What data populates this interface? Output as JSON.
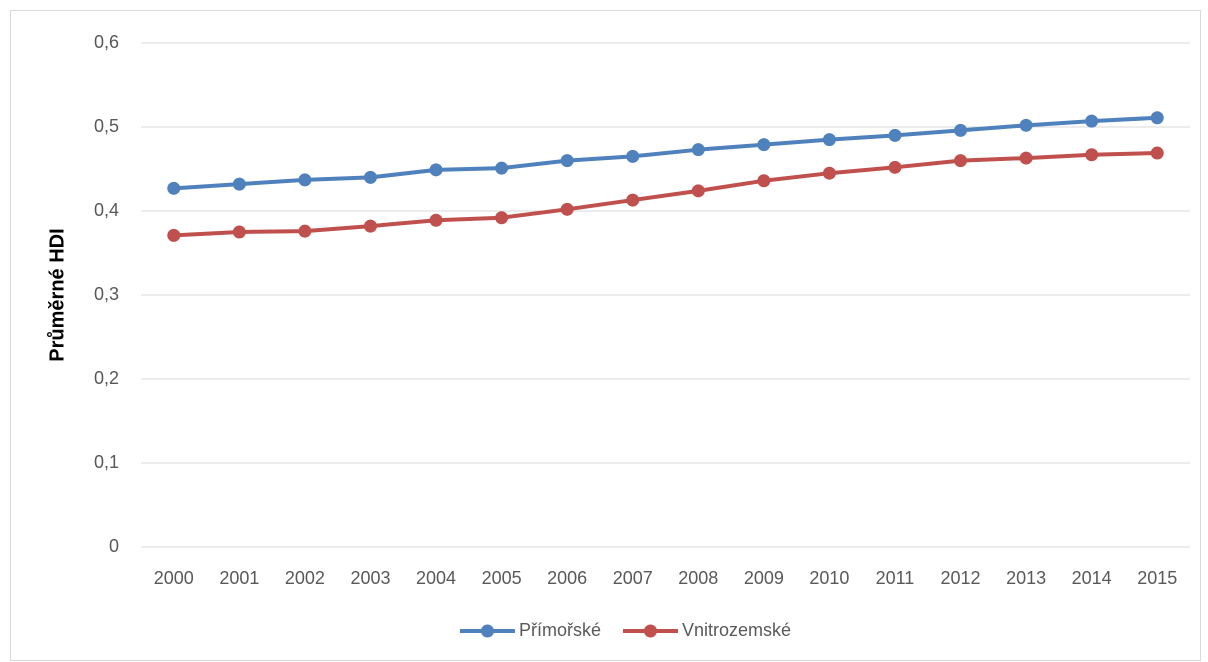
{
  "chart_data": {
    "type": "line",
    "y_label": "Průměrné HDI",
    "categories": [
      "2000",
      "2001",
      "2002",
      "2003",
      "2004",
      "2005",
      "2006",
      "2007",
      "2008",
      "2009",
      "2010",
      "2011",
      "2012",
      "2013",
      "2014",
      "2015"
    ],
    "series": [
      {
        "name": "Přímořské",
        "color": "#4f81bd",
        "values": [
          0.427,
          0.432,
          0.437,
          0.44,
          0.449,
          0.451,
          0.46,
          0.465,
          0.473,
          0.479,
          0.485,
          0.49,
          0.496,
          0.502,
          0.507,
          0.511
        ]
      },
      {
        "name": "Vnitrozemské",
        "color": "#c0504d",
        "values": [
          0.371,
          0.375,
          0.376,
          0.382,
          0.389,
          0.392,
          0.402,
          0.413,
          0.424,
          0.436,
          0.445,
          0.452,
          0.46,
          0.463,
          0.467,
          0.469
        ]
      }
    ],
    "ylim": [
      0,
      0.6
    ],
    "yticks": [
      0,
      {
        "value": 0.1,
        "label": "0,1"
      },
      {
        "value": 0.2,
        "label": "0,2"
      },
      {
        "value": 0.3,
        "label": "0,3"
      },
      {
        "value": 0.4,
        "label": "0,4"
      },
      {
        "value": 0.5,
        "label": "0,5"
      },
      {
        "value": 0.6,
        "label": "0,6"
      }
    ],
    "grid": true,
    "legend": "bottom"
  }
}
